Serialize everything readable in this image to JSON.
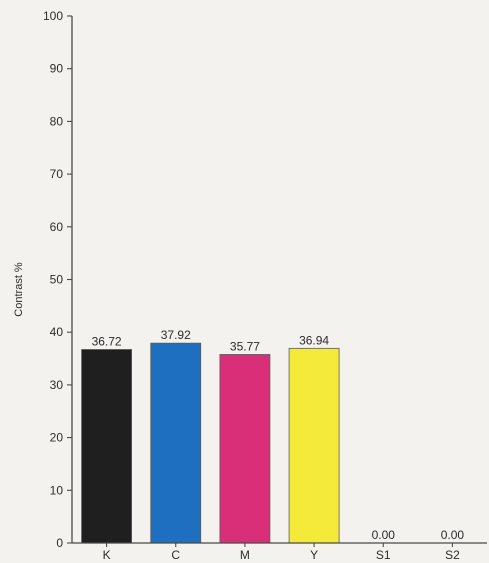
{
  "chart_data": {
    "type": "bar",
    "title": "",
    "xlabel": "",
    "ylabel": "Contrast %",
    "categories": [
      "K",
      "C",
      "M",
      "Y",
      "S1",
      "S2"
    ],
    "values": [
      36.72,
      37.92,
      35.77,
      36.94,
      0.0,
      0.0
    ],
    "data_labels": [
      "36.72",
      "37.92",
      "35.77",
      "36.94",
      "0.00",
      "0.00"
    ],
    "colors": [
      "#1f1f1f",
      "#1e6fc0",
      "#d92f79",
      "#f4ea3a",
      "#f3f2ef",
      "#f3f2ef"
    ],
    "ylim": [
      0,
      100
    ],
    "yticks": [
      0,
      10,
      20,
      30,
      40,
      50,
      60,
      70,
      80,
      90,
      100
    ],
    "grid": false,
    "legend": "none"
  }
}
